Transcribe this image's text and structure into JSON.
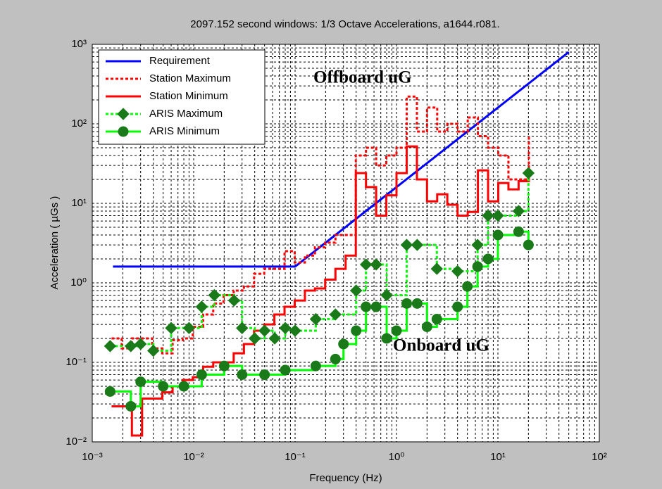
{
  "chart_data": {
    "type": "line",
    "title": "2097.152 second windows: 1/3 Octave Accelerations, a1644.r081.",
    "xlabel": "Frequency (Hz)",
    "ylabel": "Acceleration ( µGs )",
    "xscale": "log",
    "yscale": "log",
    "grid": true,
    "minor_grid": true,
    "legend": "upper left",
    "xlim": [
      0.001,
      100
    ],
    "ylim": [
      0.01,
      1000
    ],
    "xticks": [
      {
        "value": 0.001,
        "label": "10⁻³"
      },
      {
        "value": 0.01,
        "label": "10⁻²"
      },
      {
        "value": 0.1,
        "label": "10⁻¹"
      },
      {
        "value": 1,
        "label": "10⁰"
      },
      {
        "value": 10,
        "label": "10¹"
      },
      {
        "value": 100,
        "label": "10²"
      }
    ],
    "yticks": [
      {
        "value": 0.01,
        "label": "10⁻²"
      },
      {
        "value": 0.1,
        "label": "10⁻¹"
      },
      {
        "value": 1,
        "label": "10⁰"
      },
      {
        "value": 10,
        "label": "10¹"
      },
      {
        "value": 100,
        "label": "10²"
      },
      {
        "value": 1000,
        "label": "10³"
      }
    ],
    "annotations": [
      "Offboard uG",
      "Onboard uG"
    ],
    "series": [
      {
        "name": "Requirement",
        "color": "#0000ff",
        "style": "solid",
        "step": false,
        "marker": null,
        "x": [
          0.0016,
          0.1,
          50
        ],
        "values": [
          1.6,
          1.6,
          800
        ]
      },
      {
        "name": "Station Maximum",
        "color": "#ff0000",
        "style": "dotted",
        "step": true,
        "marker": null,
        "x": [
          0.00155,
          0.00195,
          0.00246,
          0.0031,
          0.0039,
          0.0049,
          0.0062,
          0.0078,
          0.0098,
          0.0124,
          0.0156,
          0.0197,
          0.0248,
          0.0313,
          0.0394,
          0.0496,
          0.0625,
          0.0787,
          0.0992,
          0.125,
          0.157,
          0.198,
          0.25,
          0.315,
          0.397,
          0.5,
          0.63,
          0.794,
          1.0,
          1.26,
          1.59,
          2.0,
          2.52,
          3.17,
          4.0,
          5.04,
          6.35,
          8.0,
          10.08,
          12.7,
          16.0,
          20.2
        ],
        "values": [
          0.2,
          0.15,
          0.2,
          0.2,
          0.15,
          0.13,
          0.19,
          0.2,
          0.28,
          0.4,
          0.55,
          0.7,
          0.8,
          0.9,
          1.3,
          1.5,
          1.5,
          2.5,
          1.8,
          2.2,
          2.8,
          3.2,
          4,
          4,
          40,
          50,
          30,
          40,
          50,
          220,
          80,
          160,
          80,
          100,
          80,
          120,
          70,
          50,
          40,
          20,
          20,
          70
        ]
      },
      {
        "name": "Station Minimum",
        "color": "#ff0000",
        "style": "solid",
        "step": true,
        "marker": null,
        "x": [
          0.00155,
          0.00195,
          0.00246,
          0.0031,
          0.0039,
          0.0049,
          0.0062,
          0.0078,
          0.0098,
          0.0124,
          0.0156,
          0.0197,
          0.0248,
          0.0313,
          0.0394,
          0.0496,
          0.0625,
          0.0787,
          0.0992,
          0.125,
          0.157,
          0.198,
          0.25,
          0.315,
          0.397,
          0.5,
          0.63,
          0.794,
          1.0,
          1.26,
          1.59,
          2.0,
          2.52,
          3.17,
          4.0,
          5.04,
          6.35,
          8.0,
          10.08,
          12.7,
          16.0,
          20.2
        ],
        "values": [
          0.028,
          0.028,
          0.012,
          0.035,
          0.035,
          0.042,
          0.05,
          0.06,
          0.065,
          0.088,
          0.1,
          0.1,
          0.13,
          0.17,
          0.25,
          0.3,
          0.4,
          0.5,
          0.6,
          0.8,
          0.85,
          1.1,
          1.5,
          2.2,
          24,
          16,
          7,
          12.6,
          24,
          52,
          20,
          10.6,
          13,
          9.6,
          7,
          7.8,
          26,
          10.6,
          18,
          15,
          19,
          30
        ]
      },
      {
        "name": "ARIS Maximum",
        "color": "#00ff00",
        "marker_color": "#1a7a1a",
        "style": "dotted",
        "step": true,
        "marker": "diamond",
        "x": [
          0.0015,
          0.0024,
          0.003,
          0.004,
          0.006,
          0.009,
          0.012,
          0.016,
          0.025,
          0.03,
          0.04,
          0.05,
          0.063,
          0.08,
          0.1,
          0.16,
          0.25,
          0.4,
          0.5,
          0.63,
          0.8,
          1.26,
          1.6,
          2.5,
          4,
          6.3,
          8,
          10,
          16,
          20
        ],
        "values": [
          0.16,
          0.16,
          0.17,
          0.14,
          0.27,
          0.27,
          0.5,
          0.7,
          0.6,
          0.27,
          0.2,
          0.25,
          0.2,
          0.27,
          0.25,
          0.35,
          0.4,
          0.8,
          1.7,
          1.7,
          0.7,
          3,
          3,
          1.5,
          1.4,
          3,
          7,
          7,
          8,
          24
        ]
      },
      {
        "name": "ARIS Minimum",
        "color": "#00ff00",
        "marker_color": "#1a7a1a",
        "style": "solid",
        "step": true,
        "marker": "circle",
        "x": [
          0.0015,
          0.0024,
          0.003,
          0.005,
          0.008,
          0.012,
          0.02,
          0.03,
          0.05,
          0.08,
          0.16,
          0.25,
          0.3,
          0.4,
          0.5,
          0.63,
          0.8,
          1.0,
          1.26,
          1.6,
          2.0,
          2.5,
          4.0,
          5.0,
          6.3,
          8,
          10,
          16,
          20
        ],
        "values": [
          0.043,
          0.028,
          0.057,
          0.05,
          0.05,
          0.07,
          0.09,
          0.07,
          0.07,
          0.08,
          0.09,
          0.11,
          0.17,
          0.25,
          0.5,
          0.5,
          0.2,
          0.25,
          0.55,
          0.55,
          0.28,
          0.35,
          0.5,
          0.9,
          1.6,
          2,
          4,
          4.4,
          3
        ]
      }
    ]
  }
}
